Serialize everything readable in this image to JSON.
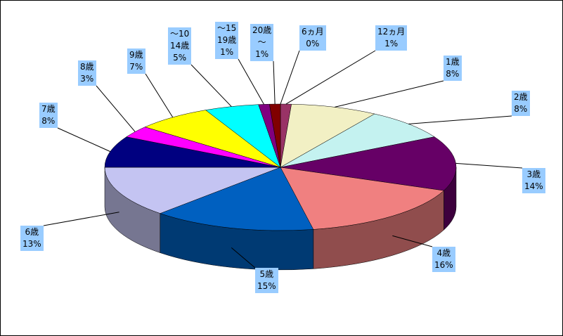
{
  "chart_data": {
    "type": "pie",
    "categories": [
      "6ヵ月",
      "12ヵ月",
      "1歳",
      "2歳",
      "3歳",
      "4歳",
      "5歳",
      "6歳",
      "7歳",
      "8歳",
      "9歳",
      "～10\n14歳",
      "～15\n19歳",
      "20歳\n～"
    ],
    "values": [
      0,
      1,
      8,
      8,
      14,
      16,
      15,
      13,
      8,
      3,
      7,
      5,
      1,
      1
    ],
    "value_labels": [
      "0%",
      "1%",
      "8%",
      "8%",
      "14%",
      "16%",
      "15%",
      "13%",
      "8%",
      "3%",
      "7%",
      "5%",
      "1%",
      "1%"
    ],
    "colors": [
      "#800000",
      "#993366",
      "#f2f0c4",
      "#c4f2f0",
      "#660066",
      "#f08080",
      "#0060c0",
      "#c4c4f2",
      "#000080",
      "#ff00ff",
      "#ffff00",
      "#00ffff",
      "#800080",
      "#800000"
    ]
  }
}
